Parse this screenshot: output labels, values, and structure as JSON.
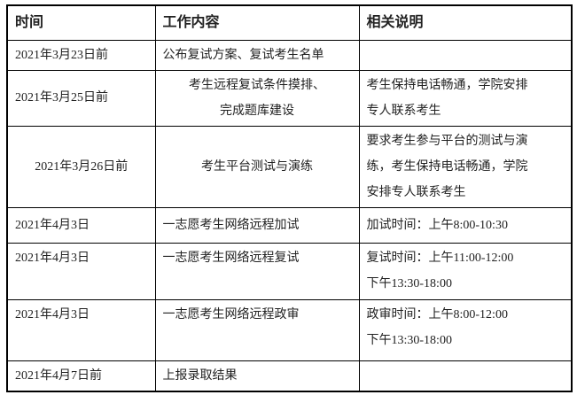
{
  "page": {
    "background_color": "#ffffff",
    "text_color": "#222222",
    "border_color": "#000000"
  },
  "table": {
    "headers": {
      "time": "时间",
      "work": "工作内容",
      "note": "相关说明"
    },
    "rows": [
      {
        "time": "2021年3月23日前",
        "work": "公布复试方案、复试考生名单",
        "note": ""
      },
      {
        "time": "2021年3月25日前",
        "work": "考生远程复试条件摸排、\n完成题库建设",
        "note": "考生保持电话畅通，学院安排\n专人联系考生"
      },
      {
        "time": "2021年3月26日前",
        "work": "考生平台测试与演练",
        "note": "要求考生参与平台的测试与演\n练，考生保持电话畅通，学院\n安排专人联系考生"
      },
      {
        "time": "2021年4月3日",
        "work": "一志愿考生网络远程加试",
        "note": "加试时间：上午8:00-10:30"
      },
      {
        "time": "2021年4月3日",
        "work": "一志愿考生网络远程复试",
        "note": "复试时间：上午11:00-12:00\n下午13:30-18:00"
      },
      {
        "time": "2021年4月3日",
        "work": "一志愿考生网络远程政审",
        "note": "政审时间：上午8:00-12:00\n下午13:30-18:00"
      },
      {
        "time": "2021年4月7日前",
        "work": "上报录取结果",
        "note": ""
      }
    ]
  }
}
